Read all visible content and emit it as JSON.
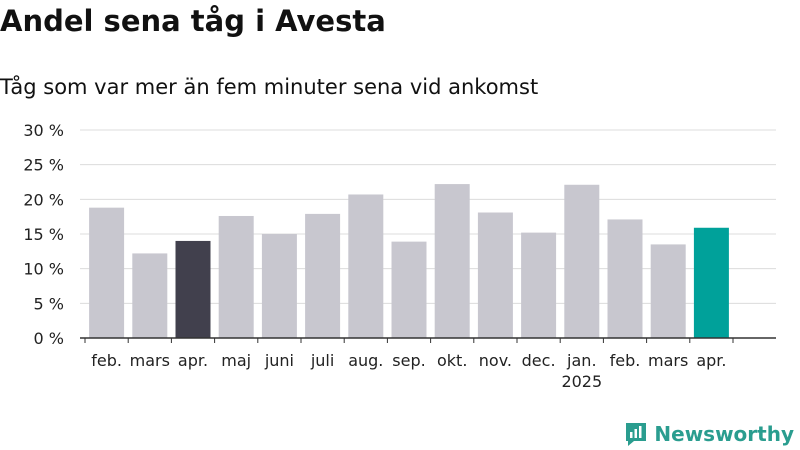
{
  "colors": {
    "bar": "#c8c7cf",
    "highlight_previous_year": "#41404d",
    "highlight_current": "#00a19a",
    "grid": "#dcdcdc",
    "axis": "#333333",
    "brand": "#2a9d8f"
  },
  "brand": {
    "name": "Newsworthy",
    "icon": "newsworthy-logo-icon"
  },
  "chart_data": {
    "type": "bar",
    "title": "Andel sena tåg i Avesta",
    "subtitle": "Tåg som var mer än fem minuter sena vid ankomst",
    "xlabel": "",
    "ylabel": "",
    "ylim": [
      0,
      30
    ],
    "yticks": [
      0,
      5,
      10,
      15,
      20,
      25,
      30
    ],
    "ytick_labels": [
      "0 %",
      "5 %",
      "10 %",
      "15 %",
      "20 %",
      "25 %",
      "30 %"
    ],
    "grid": true,
    "categories": [
      "feb.",
      "mars",
      "apr.",
      "maj",
      "juni",
      "juli",
      "aug.",
      "sep.",
      "okt.",
      "nov.",
      "dec.",
      "jan.",
      "feb.",
      "mars",
      "apr."
    ],
    "year_label": {
      "text": "2025",
      "under_category_index": 11
    },
    "values": [
      18.8,
      12.2,
      14.0,
      17.6,
      15.0,
      17.9,
      20.7,
      13.9,
      22.2,
      18.1,
      15.2,
      22.1,
      17.1,
      13.5,
      15.9
    ],
    "highlight": {
      "previous_year_index": 2,
      "current_index": 14
    }
  }
}
